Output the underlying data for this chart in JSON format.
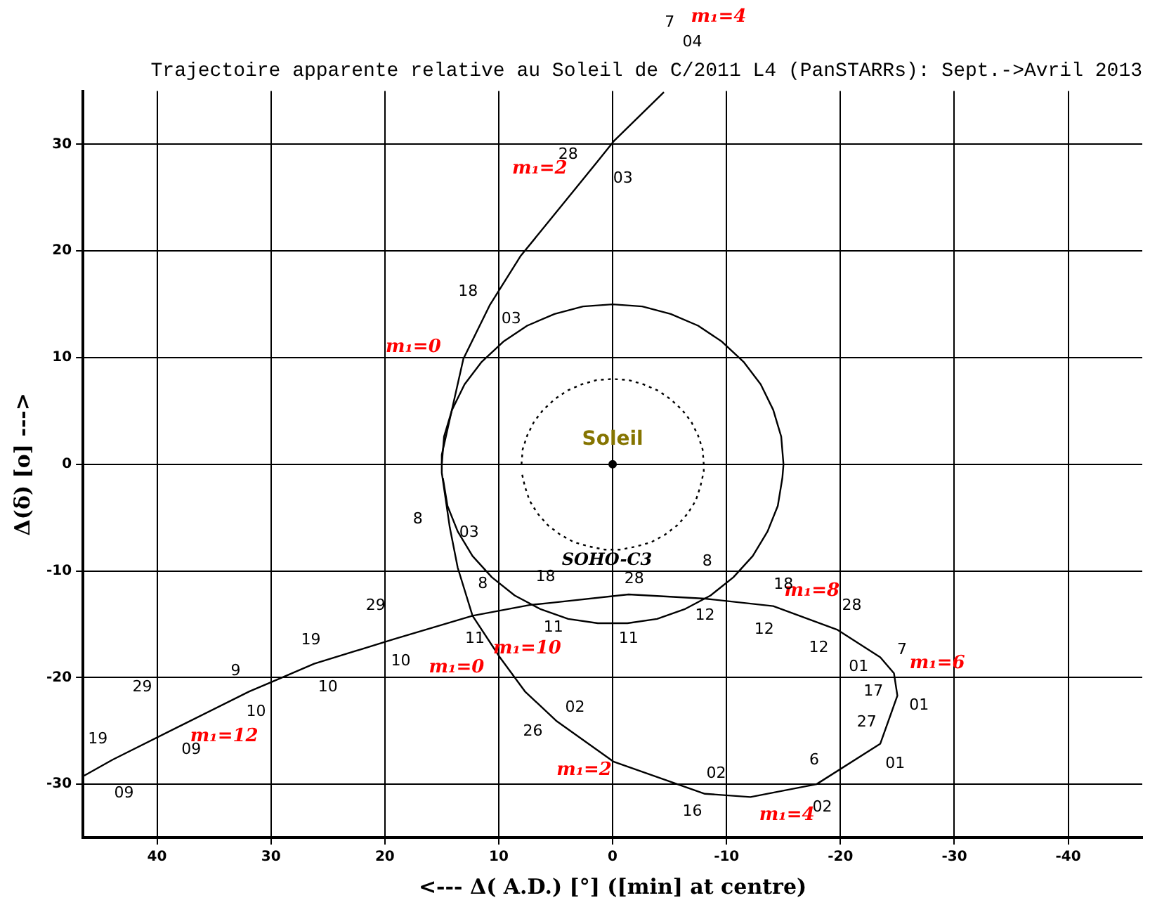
{
  "chart_data": {
    "type": "line",
    "title": "Trajectoire apparente relative au Soleil de C/2011 L4 (PanSTARRs): Sept.->Avril 2013",
    "xlabel": "<--- Δ( A.D.) [°] ([min] at centre)",
    "ylabel": "Δ(δ) [o] --->",
    "xlim": [
      46.5,
      -46.5
    ],
    "ylim": [
      -35,
      35
    ],
    "xticks": [
      40,
      30,
      20,
      10,
      0,
      -10,
      -20,
      -30,
      -40
    ],
    "yticks": [
      -30,
      -20,
      -10,
      0,
      10,
      20,
      30
    ],
    "grid": true,
    "legend": false,
    "series": [
      {
        "color": "#000000",
        "line_style": "solid",
        "marker": "none",
        "x": [
          46.4,
          43.9,
          37.9,
          31.9,
          29.9,
          26.2,
          19.2,
          12.3,
          7.3,
          5.5,
          -1.4,
          -8.1,
          -14.1,
          -19.7,
          -23.5,
          -24.7,
          -25.0,
          -23.5,
          -17.9,
          -12.1,
          -8.1,
          -0.1,
          4.9,
          7.7,
          9.9,
          12.3,
          13.6,
          14.3,
          15.0,
          15.0,
          13.1,
          10.8,
          8.1,
          1.4,
          -0.1,
          -4.5
        ],
        "values": [
          -29.2,
          -27.7,
          -24.5,
          -21.3,
          -20.4,
          -18.7,
          -16.4,
          -14.2,
          -13.2,
          -13.0,
          -12.2,
          -12.6,
          -13.3,
          -15.5,
          -18.1,
          -19.6,
          -21.7,
          -26.2,
          -30.0,
          -31.2,
          -30.9,
          -27.9,
          -24.1,
          -21.3,
          -18.1,
          -14.2,
          -9.7,
          -5.9,
          -0.8,
          0.9,
          9.9,
          14.9,
          19.5,
          28.3,
          30.3,
          34.9
        ]
      },
      {
        "color": "#000000",
        "line_style": "solid",
        "marker": "none",
        "x": [
          15,
          14.8,
          14.1,
          13.0,
          11.5,
          9.6,
          7.5,
          5.1,
          2.6,
          0,
          -2.6,
          -5.1,
          -7.5,
          -9.6,
          -11.5,
          -13.0,
          -14.1,
          -14.8,
          -15,
          -14.9,
          -14.5,
          -13.6,
          -12.3,
          -10.6,
          -8.6,
          -6.3,
          -3.9,
          -1.3,
          1.3,
          3.9,
          6.3,
          8.6,
          10.6,
          12.3,
          13.6,
          14.5,
          14.9
        ],
        "values": [
          0,
          2.6,
          5.1,
          7.5,
          9.6,
          11.5,
          13.0,
          14.1,
          14.8,
          15,
          14.8,
          14.1,
          13.0,
          11.5,
          9.6,
          7.5,
          5.1,
          2.6,
          0,
          -1.3,
          -3.9,
          -6.3,
          -8.6,
          -10.6,
          -12.3,
          -13.6,
          -14.5,
          -14.9,
          -14.9,
          -14.5,
          -13.6,
          -12.3,
          -10.6,
          -8.6,
          -6.3,
          -3.9,
          -1.3
        ]
      },
      {
        "color": "#000000",
        "line_style": "dotted",
        "marker": "none",
        "x": [
          8,
          7.9,
          7.5,
          6.9,
          6.1,
          5.1,
          4,
          2.7,
          1.4,
          0,
          -1.4,
          -2.7,
          -4,
          -5.1,
          -6.1,
          -6.9,
          -7.5,
          -7.9,
          -8,
          -8.0,
          -7.7,
          -7.3,
          -6.6,
          -5.7,
          -4.6,
          -3.4,
          -2.1,
          -0.7,
          0.7,
          2.1,
          3.4,
          4.6,
          5.7,
          6.6,
          7.3,
          7.7,
          8.0
        ],
        "values": [
          0,
          1.4,
          2.7,
          4,
          5.1,
          6.1,
          6.9,
          7.5,
          7.9,
          8,
          7.9,
          7.5,
          6.9,
          6.1,
          5.1,
          4,
          2.7,
          1.4,
          0,
          -0.7,
          -2.1,
          -3.4,
          -4.6,
          -5.7,
          -6.6,
          -7.3,
          -7.7,
          -8.0,
          -8.0,
          -7.7,
          -7.3,
          -6.6,
          -5.7,
          -4.6,
          -3.4,
          -2.1,
          -0.7
        ]
      },
      {
        "type": "scatter",
        "color": "#000000",
        "marker": "circle",
        "x": [
          0
        ],
        "values": [
          0
        ]
      }
    ],
    "annotations": [
      "Soleil",
      "SOHO-C3",
      "m₁=4",
      "m₁=2",
      "m₁=0",
      "m₁=10",
      "m₁=0",
      "m₁=12",
      "m₁=2",
      "m₁=8",
      "m₁=6",
      "m₁=4",
      "19",
      "09",
      "29",
      "09",
      "9",
      "10",
      "19",
      "10",
      "29",
      "10",
      "8",
      "11",
      "18",
      "11",
      "28",
      "11",
      "8",
      "12",
      "18",
      "12",
      "28",
      "12",
      "7",
      "01",
      "17",
      "01",
      "27",
      "01",
      "6",
      "02",
      "16",
      "02",
      "26",
      "02",
      "8",
      "03",
      "18",
      "03",
      "28",
      "03",
      "7",
      "04"
    ]
  }
}
